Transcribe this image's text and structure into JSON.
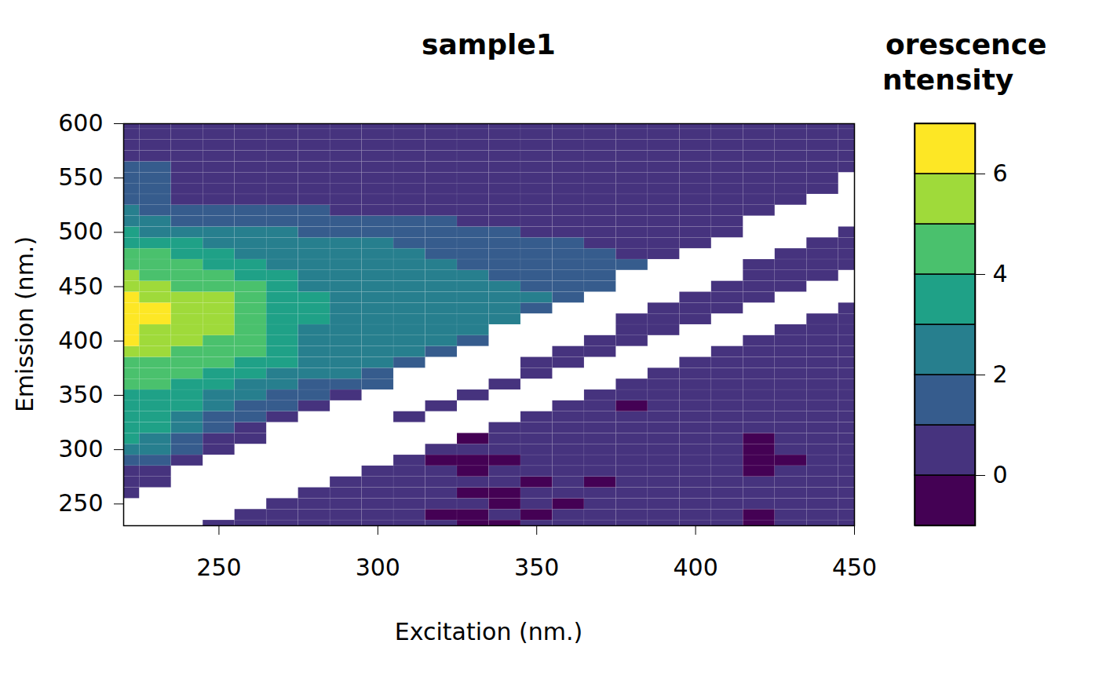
{
  "chart_data": {
    "type": "heatmap",
    "title": "sample1",
    "x_label": "Excitation (nm.)",
    "y_label": "Emission (nm.)",
    "xlim": [
      220,
      450
    ],
    "xticks": [
      250,
      300,
      350,
      400,
      450
    ],
    "ylim": [
      230,
      600
    ],
    "yticks": [
      250,
      300,
      350,
      400,
      450,
      500,
      550,
      600
    ],
    "excitation": [
      220,
      230,
      240,
      250,
      260,
      270,
      280,
      290,
      300,
      310,
      320,
      330,
      340,
      350,
      360,
      370,
      380,
      390,
      400,
      410,
      420,
      430,
      440,
      450
    ],
    "emission": [
      230,
      240,
      250,
      260,
      270,
      280,
      290,
      300,
      310,
      320,
      330,
      340,
      350,
      360,
      370,
      380,
      390,
      400,
      410,
      420,
      430,
      440,
      450,
      460,
      470,
      480,
      490,
      500,
      510,
      520,
      530,
      540,
      550,
      560,
      570,
      580,
      590,
      600
    ],
    "intensity": [
      [
        null,
        null,
        null,
        0.5,
        0.5,
        0.5,
        1.5,
        2.5,
        3.5,
        3.5,
        3.5,
        3.5,
        3.5,
        4.5,
        4.5,
        4.5,
        5.5,
        6.5,
        6.5,
        6.5,
        6.5,
        6.5,
        5.5,
        5.5,
        4.5,
        4.5,
        3.5,
        3.5,
        2.5,
        2.5,
        1.5,
        1.5,
        1.5,
        1.5,
        0.5,
        0.5,
        0.5,
        0.5
      ],
      [
        null,
        null,
        null,
        null,
        0.5,
        0.5,
        1.5,
        2.5,
        2.5,
        3.5,
        3.5,
        3.5,
        3.5,
        4.5,
        4.5,
        4.5,
        5.5,
        5.5,
        5.5,
        6.5,
        6.5,
        5.5,
        5.5,
        4.5,
        4.5,
        4.5,
        3.5,
        2.5,
        2.5,
        1.5,
        1.5,
        1.5,
        1.5,
        1.5,
        0.5,
        0.5,
        0.5,
        0.5
      ],
      [
        null,
        null,
        null,
        null,
        null,
        null,
        0.5,
        1.5,
        1.5,
        2.5,
        2.5,
        3.5,
        3.5,
        3.5,
        4.5,
        4.5,
        4.5,
        5.5,
        5.5,
        5.5,
        5.5,
        5.5,
        4.5,
        4.5,
        4.5,
        3.5,
        3.5,
        2.5,
        1.5,
        1.5,
        0.5,
        0.5,
        0.5,
        0.5,
        0.5,
        0.5,
        0.5,
        0.5
      ],
      [
        0.5,
        null,
        null,
        null,
        null,
        null,
        null,
        0.5,
        0.5,
        1.5,
        1.5,
        2.5,
        2.5,
        3.5,
        3.5,
        4.5,
        4.5,
        4.5,
        5.5,
        5.5,
        5.5,
        5.5,
        4.5,
        4.5,
        3.5,
        3.5,
        2.5,
        2.5,
        1.5,
        1.5,
        0.5,
        0.5,
        0.5,
        0.5,
        0.5,
        0.5,
        0.5,
        0.5
      ],
      [
        0.5,
        0.5,
        null,
        null,
        null,
        null,
        null,
        null,
        0.5,
        0.5,
        1.5,
        1.5,
        2.5,
        2.5,
        3.5,
        3.5,
        4.5,
        4.5,
        4.5,
        4.5,
        4.5,
        4.5,
        4.5,
        3.5,
        3.5,
        2.5,
        2.5,
        2.5,
        1.5,
        1.5,
        0.5,
        0.5,
        0.5,
        0.5,
        0.5,
        0.5,
        0.5,
        0.5
      ],
      [
        0.5,
        0.5,
        0.5,
        null,
        null,
        null,
        null,
        null,
        null,
        null,
        0.5,
        1.5,
        1.5,
        2.5,
        2.5,
        3.5,
        3.5,
        3.5,
        3.5,
        3.5,
        3.5,
        3.5,
        3.5,
        3.5,
        2.5,
        2.5,
        2.5,
        2.5,
        1.5,
        1.5,
        0.5,
        0.5,
        0.5,
        0.5,
        0.5,
        0.5,
        0.5,
        0.5
      ],
      [
        0.5,
        0.5,
        0.5,
        0.5,
        null,
        null,
        null,
        null,
        null,
        null,
        null,
        0.5,
        1.5,
        1.5,
        2.5,
        2.5,
        2.5,
        2.5,
        2.5,
        3.5,
        3.5,
        3.5,
        2.5,
        2.5,
        2.5,
        2.5,
        2.5,
        1.5,
        1.5,
        1.5,
        0.5,
        0.5,
        0.5,
        0.5,
        0.5,
        0.5,
        0.5,
        0.5
      ],
      [
        0.5,
        0.5,
        0.5,
        0.5,
        0.5,
        null,
        null,
        null,
        null,
        null,
        null,
        null,
        0.5,
        1.5,
        2.5,
        2.5,
        2.5,
        2.5,
        2.5,
        2.5,
        2.5,
        2.5,
        2.5,
        2.5,
        2.5,
        2.5,
        2.5,
        1.5,
        1.5,
        0.5,
        0.5,
        0.5,
        0.5,
        0.5,
        0.5,
        0.5,
        0.5,
        0.5
      ],
      [
        0.5,
        0.5,
        0.5,
        0.5,
        0.5,
        0.5,
        null,
        null,
        null,
        null,
        null,
        null,
        null,
        1.5,
        1.5,
        2.5,
        2.5,
        2.5,
        2.5,
        2.5,
        2.5,
        2.5,
        2.5,
        2.5,
        2.5,
        2.5,
        2.5,
        1.5,
        1.5,
        0.5,
        0.5,
        0.5,
        0.5,
        0.5,
        0.5,
        0.5,
        0.5,
        0.5
      ],
      [
        0.5,
        0.5,
        0.5,
        0.5,
        0.5,
        0.5,
        0.5,
        null,
        null,
        null,
        0.5,
        null,
        null,
        null,
        null,
        1.5,
        2.5,
        2.5,
        2.5,
        2.5,
        2.5,
        2.5,
        2.5,
        2.5,
        2.5,
        2.5,
        1.5,
        1.5,
        1.5,
        0.5,
        0.5,
        0.5,
        0.5,
        0.5,
        0.5,
        0.5,
        0.5,
        0.5
      ],
      [
        0.5,
        -0.5,
        0.5,
        0.5,
        0.5,
        0.5,
        -0.5,
        0.5,
        null,
        null,
        null,
        0.5,
        null,
        null,
        null,
        null,
        1.5,
        2.5,
        2.5,
        2.5,
        2.5,
        2.5,
        2.5,
        2.5,
        2.5,
        1.5,
        1.5,
        1.5,
        1.5,
        0.5,
        0.5,
        0.5,
        0.5,
        0.5,
        0.5,
        0.5,
        0.5,
        0.5
      ],
      [
        -0.5,
        -0.5,
        0.5,
        -0.5,
        0.5,
        -0.5,
        -0.5,
        0.5,
        -0.5,
        null,
        null,
        null,
        0.5,
        null,
        null,
        null,
        null,
        1.5,
        2.5,
        2.5,
        2.5,
        2.5,
        2.5,
        2.5,
        1.5,
        1.5,
        1.5,
        1.5,
        0.5,
        0.5,
        0.5,
        0.5,
        0.5,
        0.5,
        0.5,
        0.5,
        0.5,
        0.5
      ],
      [
        -0.5,
        0.5,
        -0.5,
        -0.5,
        0.5,
        0.5,
        -0.5,
        0.5,
        0.5,
        0.5,
        null,
        null,
        null,
        0.5,
        null,
        null,
        null,
        null,
        null,
        2.5,
        2.5,
        2.5,
        2.5,
        1.5,
        1.5,
        1.5,
        1.5,
        1.5,
        0.5,
        0.5,
        0.5,
        0.5,
        0.5,
        0.5,
        0.5,
        0.5,
        0.5,
        0.5
      ],
      [
        0.5,
        -0.5,
        0.5,
        0.5,
        -0.5,
        0.5,
        0.5,
        0.5,
        0.5,
        0.5,
        0.5,
        null,
        null,
        null,
        0.5,
        0.5,
        null,
        null,
        null,
        null,
        1.5,
        2.5,
        1.5,
        1.5,
        1.5,
        1.5,
        1.5,
        0.5,
        0.5,
        0.5,
        0.5,
        0.5,
        0.5,
        0.5,
        0.5,
        0.5,
        0.5,
        0.5
      ],
      [
        0.5,
        0.5,
        -0.5,
        0.5,
        0.5,
        0.5,
        0.5,
        0.5,
        0.5,
        0.5,
        0.5,
        0.5,
        null,
        null,
        null,
        0.5,
        0.5,
        null,
        null,
        null,
        null,
        1.5,
        1.5,
        1.5,
        1.5,
        1.5,
        1.5,
        0.5,
        0.5,
        0.5,
        0.5,
        0.5,
        0.5,
        0.5,
        0.5,
        0.5,
        0.5,
        0.5
      ],
      [
        0.5,
        0.5,
        0.5,
        0.5,
        -0.5,
        0.5,
        0.5,
        0.5,
        0.5,
        0.5,
        0.5,
        0.5,
        0.5,
        null,
        null,
        null,
        0.5,
        0.5,
        null,
        null,
        null,
        null,
        1.5,
        1.5,
        1.5,
        1.5,
        0.5,
        0.5,
        0.5,
        0.5,
        0.5,
        0.5,
        0.5,
        0.5,
        0.5,
        0.5,
        0.5,
        0.5
      ],
      [
        0.5,
        0.5,
        0.5,
        0.5,
        0.5,
        0.5,
        0.5,
        0.5,
        0.5,
        0.5,
        0.5,
        -0.5,
        0.5,
        0.5,
        null,
        null,
        null,
        0.5,
        0.5,
        0.5,
        null,
        null,
        null,
        null,
        1.5,
        0.5,
        0.5,
        0.5,
        0.5,
        0.5,
        0.5,
        0.5,
        0.5,
        0.5,
        0.5,
        0.5,
        0.5,
        0.5
      ],
      [
        0.5,
        0.5,
        0.5,
        0.5,
        0.5,
        0.5,
        0.5,
        0.5,
        0.5,
        0.5,
        0.5,
        0.5,
        0.5,
        0.5,
        0.5,
        null,
        null,
        null,
        0.5,
        0.5,
        0.5,
        null,
        null,
        null,
        null,
        0.5,
        0.5,
        0.5,
        0.5,
        0.5,
        0.5,
        0.5,
        0.5,
        0.5,
        0.5,
        0.5,
        0.5,
        0.5
      ],
      [
        0.5,
        0.5,
        0.5,
        0.5,
        0.5,
        0.5,
        0.5,
        0.5,
        0.5,
        0.5,
        0.5,
        0.5,
        0.5,
        0.5,
        0.5,
        0.5,
        null,
        null,
        null,
        0.5,
        0.5,
        0.5,
        null,
        null,
        null,
        null,
        0.5,
        0.5,
        0.5,
        0.5,
        0.5,
        0.5,
        0.5,
        0.5,
        0.5,
        0.5,
        0.5,
        0.5
      ],
      [
        0.5,
        0.5,
        0.5,
        0.5,
        0.5,
        0.5,
        0.5,
        0.5,
        0.5,
        0.5,
        0.5,
        0.5,
        0.5,
        0.5,
        0.5,
        0.5,
        0.5,
        null,
        null,
        null,
        0.5,
        0.5,
        0.5,
        null,
        null,
        null,
        null,
        0.5,
        0.5,
        0.5,
        0.5,
        0.5,
        0.5,
        0.5,
        0.5,
        0.5,
        0.5,
        0.5
      ],
      [
        -0.5,
        -0.5,
        0.5,
        0.5,
        0.5,
        -0.5,
        -0.5,
        -0.5,
        -0.5,
        0.5,
        0.5,
        0.5,
        0.5,
        0.5,
        0.5,
        0.5,
        0.5,
        0.5,
        null,
        null,
        null,
        0.5,
        0.5,
        0.5,
        0.5,
        null,
        null,
        null,
        null,
        0.5,
        0.5,
        0.5,
        0.5,
        0.5,
        0.5,
        0.5,
        0.5,
        0.5
      ],
      [
        0.5,
        0.5,
        0.5,
        0.5,
        0.5,
        0.5,
        -0.5,
        0.5,
        0.5,
        0.5,
        0.5,
        0.5,
        0.5,
        0.5,
        0.5,
        0.5,
        0.5,
        0.5,
        0.5,
        null,
        null,
        null,
        0.5,
        0.5,
        0.5,
        0.5,
        null,
        null,
        null,
        null,
        0.5,
        0.5,
        0.5,
        0.5,
        0.5,
        0.5,
        0.5,
        0.5
      ],
      [
        0.5,
        0.5,
        0.5,
        0.5,
        0.5,
        0.5,
        0.5,
        0.5,
        0.5,
        0.5,
        0.5,
        0.5,
        0.5,
        0.5,
        0.5,
        0.5,
        0.5,
        0.5,
        0.5,
        0.5,
        null,
        null,
        null,
        0.5,
        0.5,
        0.5,
        0.5,
        null,
        null,
        null,
        null,
        0.5,
        0.5,
        0.5,
        0.5,
        0.5,
        0.5,
        0.5
      ],
      [
        0.5,
        0.5,
        0.5,
        0.5,
        0.5,
        0.5,
        0.5,
        0.5,
        0.5,
        0.5,
        0.5,
        0.5,
        0.5,
        0.5,
        0.5,
        0.5,
        0.5,
        0.5,
        0.5,
        0.5,
        0.5,
        null,
        null,
        null,
        0.5,
        0.5,
        0.5,
        0.5,
        null,
        null,
        null,
        null,
        null,
        0.5,
        0.5,
        0.5,
        0.5,
        0.5
      ]
    ],
    "colorbar": {
      "title": [
        "orescence",
        "ntensity"
      ],
      "levels": [
        -1,
        0,
        1,
        2,
        3,
        4,
        5,
        6,
        7
      ],
      "colors": [
        "#440154",
        "#46337E",
        "#365C8D",
        "#277F8E",
        "#1FA187",
        "#4AC16D",
        "#9FDA3A",
        "#FDE725"
      ],
      "lim": [
        -1,
        7
      ],
      "ticks": [
        0,
        2,
        4,
        6
      ]
    }
  }
}
